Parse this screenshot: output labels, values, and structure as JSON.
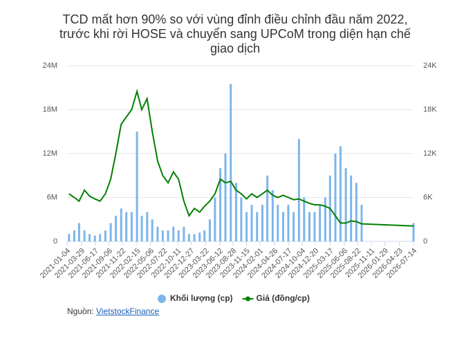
{
  "chart_data": {
    "type": "bar-line",
    "title": "TCD mất hơn 90% so với vùng đỉnh điều chỉnh đầu năm 2022, trước khi rời HOSE và chuyển sang UPCoM trong diện hạn chế giao dịch",
    "x": [
      "2021-01-15",
      "2021-02-15",
      "2021-03-15",
      "2021-04-15",
      "2021-05-15",
      "2021-06-15",
      "2021-07-15",
      "2021-08-15",
      "2021-09-15",
      "2021-10-15",
      "2021-11-15",
      "2021-12-15",
      "2022-01-15",
      "2022-02-15",
      "2022-03-15",
      "2022-04-15",
      "2022-05-15",
      "2022-06-15",
      "2022-07-15",
      "2022-08-15",
      "2022-09-15",
      "2022-10-15",
      "2022-11-15",
      "2022-12-15",
      "2023-01-15",
      "2023-02-15",
      "2023-03-15",
      "2023-04-15",
      "2023-05-15",
      "2023-06-15",
      "2023-07-15",
      "2023-08-15",
      "2023-09-15",
      "2023-10-15",
      "2023-11-15",
      "2023-12-15",
      "2024-01-15",
      "2024-02-15",
      "2024-03-15",
      "2024-04-15",
      "2024-05-15",
      "2024-06-15",
      "2024-07-15",
      "2024-08-15",
      "2024-09-15",
      "2024-10-15",
      "2024-11-15",
      "2024-12-15",
      "2025-01-15",
      "2025-02-15",
      "2025-03-15",
      "2025-04-15",
      "2025-05-15",
      "2025-06-15",
      "2025-07-15",
      "2025-08-15",
      "2025-09-15",
      "2026-07-14"
    ],
    "series": [
      {
        "name": "Khối lượng (cp)",
        "color": "#7cb5ec",
        "axis": "y",
        "values": [
          1000000,
          1500000,
          2500000,
          1500000,
          1000000,
          800000,
          1000000,
          1500000,
          2500000,
          3500000,
          4500000,
          4000000,
          4000000,
          15000000,
          3500000,
          4000000,
          3000000,
          2000000,
          1500000,
          1500000,
          2000000,
          1500000,
          2000000,
          1000000,
          1000000,
          1200000,
          1500000,
          3000000,
          6000000,
          10000000,
          12000000,
          21500000,
          8000000,
          6000000,
          4000000,
          5000000,
          4000000,
          5000000,
          9000000,
          7000000,
          5000000,
          4000000,
          5000000,
          4000000,
          14000000,
          6000000,
          4000000,
          4000000,
          5000000,
          6000000,
          9000000,
          12000000,
          13000000,
          10000000,
          9000000,
          8000000,
          5000000,
          2500000
        ]
      },
      {
        "name": "Giá (đồng/cp)",
        "color": "#008000",
        "axis": "y2",
        "values": [
          6500,
          6000,
          5500,
          7000,
          6200,
          5800,
          5500,
          6500,
          8500,
          12000,
          16000,
          17000,
          18000,
          20500,
          18000,
          19500,
          15000,
          11000,
          9000,
          8000,
          9500,
          8500,
          5500,
          3500,
          4500,
          4000,
          4800,
          5500,
          6500,
          8500,
          8000,
          8200,
          7000,
          6500,
          5800,
          6500,
          6000,
          6500,
          7000,
          6300,
          6000,
          6300,
          6000,
          5700,
          5800,
          5500,
          5200,
          5000,
          5000,
          4800,
          4500,
          3500,
          2500,
          2500,
          2800,
          2700,
          2400,
          2100
        ]
      }
    ],
    "xlim": [
      "2021-01-04",
      "2026-07-14"
    ],
    "xticks": [
      "2021-01-04",
      "2021-03-29",
      "2021-06-17",
      "2021-09-06",
      "2021-11-22",
      "2022-02-15",
      "2022-05-06",
      "2022-07-22",
      "2022-10-11",
      "2022-12-27",
      "2023-03-22",
      "2023-06-12",
      "2023-08-28",
      "2023-11-15",
      "2024-02-01",
      "2024-04-26",
      "2024-07-17",
      "2024-10-04",
      "2024-12-20",
      "2025-03-17",
      "2025-06-06",
      "2025-08-22",
      "2025-11-11",
      "2026-01-29",
      "2026-04-23",
      "2026-07-14"
    ],
    "ylim": [
      0,
      24000000
    ],
    "yticks": [
      0,
      {
        "value": 6000000,
        "label": "6M"
      },
      {
        "value": 12000000,
        "label": "12M"
      },
      {
        "value": 18000000,
        "label": "18M"
      },
      {
        "value": 24000000,
        "label": "24M"
      }
    ],
    "y2lim": [
      0,
      24000
    ],
    "y2ticks": [
      0,
      {
        "value": 6000,
        "label": "6K"
      },
      {
        "value": 12000,
        "label": "12K"
      },
      {
        "value": 18000,
        "label": "18K"
      },
      {
        "value": 24000,
        "label": "24K"
      }
    ],
    "grid": true,
    "legend": "bottom",
    "source_label": "Nguồn:",
    "source_link": "VietstockFinance"
  }
}
